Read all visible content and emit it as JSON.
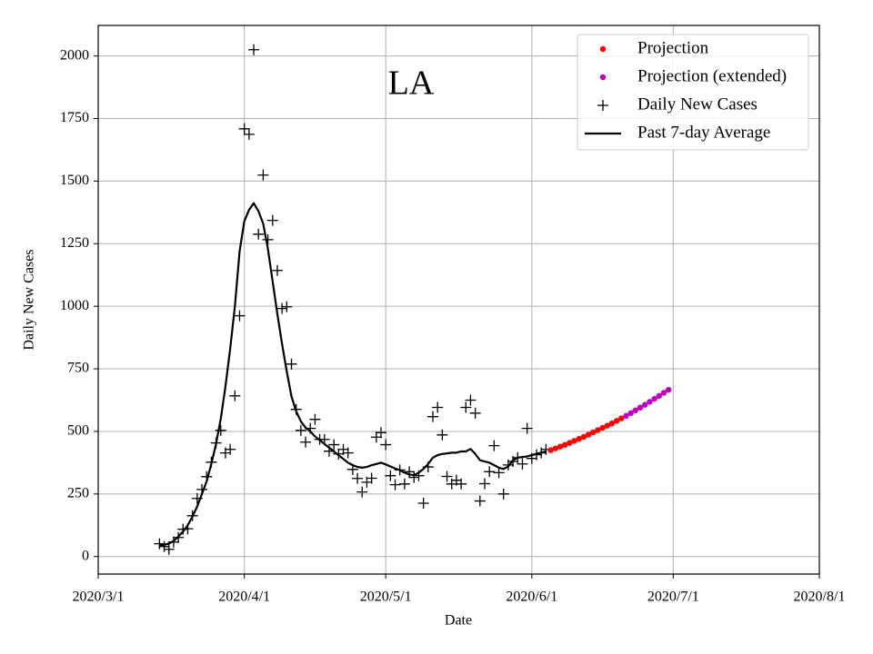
{
  "chart_data": {
    "type": "line",
    "title": "LA",
    "xlabel": "Date",
    "ylabel": "Daily New Cases",
    "xlim": [
      "2020/3/1",
      "2020/8/1"
    ],
    "xticks": [
      "2020/3/1",
      "2020/4/1",
      "2020/5/1",
      "2020/6/1",
      "2020/7/1",
      "2020/8/1"
    ],
    "ylim": [
      -70,
      2122
    ],
    "yticks": [
      0,
      250,
      500,
      750,
      1000,
      1250,
      1500,
      1750,
      2000
    ],
    "grid": true,
    "legend": "upper right",
    "series": [
      {
        "name": "Projection",
        "color": "#ff0000",
        "style": "dot",
        "x": [
          "2020/6/5",
          "2020/6/6",
          "2020/6/7",
          "2020/6/8",
          "2020/6/9",
          "2020/6/10",
          "2020/6/11",
          "2020/6/12",
          "2020/6/13",
          "2020/6/14",
          "2020/6/15",
          "2020/6/16",
          "2020/6/17",
          "2020/6/18",
          "2020/6/19",
          "2020/6/20"
        ],
        "values": [
          425,
          432,
          439,
          446,
          454,
          462,
          470,
          478,
          487,
          496,
          505,
          514,
          523,
          532,
          542,
          552
        ]
      },
      {
        "name": "Projection (extended)",
        "color": "#bf00bf",
        "style": "dot",
        "x": [
          "2020/6/21",
          "2020/6/22",
          "2020/6/23",
          "2020/6/24",
          "2020/6/25",
          "2020/6/26",
          "2020/6/27",
          "2020/6/28",
          "2020/6/29",
          "2020/6/30"
        ],
        "values": [
          562,
          573,
          584,
          595,
          606,
          618,
          630,
          642,
          654,
          666
        ]
      },
      {
        "name": "Daily New Cases",
        "color": "#000000",
        "style": "plus",
        "x": [
          "2020/3/14",
          "2020/3/15",
          "2020/3/16",
          "2020/3/17",
          "2020/3/18",
          "2020/3/19",
          "2020/3/20",
          "2020/3/21",
          "2020/3/22",
          "2020/3/23",
          "2020/3/24",
          "2020/3/25",
          "2020/3/26",
          "2020/3/27",
          "2020/3/28",
          "2020/3/29",
          "2020/3/30",
          "2020/3/31",
          "2020/4/1",
          "2020/4/2",
          "2020/4/3",
          "2020/4/4",
          "2020/4/5",
          "2020/4/6",
          "2020/4/7",
          "2020/4/8",
          "2020/4/9",
          "2020/4/10",
          "2020/4/11",
          "2020/4/12",
          "2020/4/13",
          "2020/4/14",
          "2020/4/15",
          "2020/4/16",
          "2020/4/17",
          "2020/4/18",
          "2020/4/19",
          "2020/4/20",
          "2020/4/21",
          "2020/4/22",
          "2020/4/23",
          "2020/4/24",
          "2020/4/25",
          "2020/4/26",
          "2020/4/27",
          "2020/4/28",
          "2020/4/29",
          "2020/4/30",
          "2020/5/1",
          "2020/5/2",
          "2020/5/3",
          "2020/5/4",
          "2020/5/5",
          "2020/5/6",
          "2020/5/7",
          "2020/5/8",
          "2020/5/9",
          "2020/5/10",
          "2020/5/11",
          "2020/5/12",
          "2020/5/13",
          "2020/5/14",
          "2020/5/15",
          "2020/5/16",
          "2020/5/17",
          "2020/5/18",
          "2020/5/19",
          "2020/5/20",
          "2020/5/21",
          "2020/5/22",
          "2020/5/23",
          "2020/5/24",
          "2020/5/25",
          "2020/5/26",
          "2020/5/27",
          "2020/5/28",
          "2020/5/29",
          "2020/5/30",
          "2020/5/31",
          "2020/6/1",
          "2020/6/2",
          "2020/6/3",
          "2020/6/4"
        ],
        "values": [
          51,
          40,
          29,
          58,
          76,
          109,
          111,
          163,
          232,
          268,
          319,
          377,
          454,
          504,
          414,
          428,
          642,
          962,
          1709,
          1687,
          2025,
          1288,
          1524,
          1266,
          1343,
          1143,
          991,
          998,
          769,
          588,
          504,
          457,
          512,
          548,
          468,
          468,
          421,
          447,
          410,
          428,
          414,
          348,
          312,
          258,
          297,
          313,
          477,
          495,
          447,
          323,
          287,
          346,
          290,
          339,
          316,
          323,
          213,
          358,
          559,
          596,
          486,
          320,
          290,
          305,
          290,
          596,
          625,
          573,
          222,
          291,
          339,
          443,
          335,
          250,
          366,
          380,
          395,
          370,
          512,
          392,
          407,
          414,
          428
        ]
      },
      {
        "name": "Past 7-day Average",
        "color": "#000000",
        "style": "line",
        "x": [
          "2020/3/14",
          "2020/3/15",
          "2020/3/16",
          "2020/3/17",
          "2020/3/18",
          "2020/3/19",
          "2020/3/20",
          "2020/3/21",
          "2020/3/22",
          "2020/3/23",
          "2020/3/24",
          "2020/3/25",
          "2020/3/26",
          "2020/3/27",
          "2020/3/28",
          "2020/3/29",
          "2020/3/30",
          "2020/3/31",
          "2020/4/1",
          "2020/4/2",
          "2020/4/3",
          "2020/4/4",
          "2020/4/5",
          "2020/4/6",
          "2020/4/7",
          "2020/4/8",
          "2020/4/9",
          "2020/4/10",
          "2020/4/11",
          "2020/4/12",
          "2020/4/13",
          "2020/4/14",
          "2020/4/15",
          "2020/4/16",
          "2020/4/17",
          "2020/4/18",
          "2020/4/19",
          "2020/4/20",
          "2020/4/21",
          "2020/4/22",
          "2020/4/23",
          "2020/4/24",
          "2020/4/25",
          "2020/4/26",
          "2020/4/27",
          "2020/4/28",
          "2020/4/29",
          "2020/4/30",
          "2020/5/1",
          "2020/5/2",
          "2020/5/3",
          "2020/5/4",
          "2020/5/5",
          "2020/5/6",
          "2020/5/7",
          "2020/5/8",
          "2020/5/9",
          "2020/5/10",
          "2020/5/11",
          "2020/5/12",
          "2020/5/13",
          "2020/5/14",
          "2020/5/15",
          "2020/5/16",
          "2020/5/17",
          "2020/5/18",
          "2020/5/19",
          "2020/5/20",
          "2020/5/21",
          "2020/5/22",
          "2020/5/23",
          "2020/5/24",
          "2020/5/25",
          "2020/5/26",
          "2020/5/27",
          "2020/5/28",
          "2020/5/29",
          "2020/5/30",
          "2020/5/31",
          "2020/6/1",
          "2020/6/2",
          "2020/6/3",
          "2020/6/4"
        ],
        "values": [
          45,
          47,
          52,
          62,
          80,
          100,
          125,
          160,
          200,
          250,
          300,
          370,
          450,
          550,
          680,
          830,
          1000,
          1220,
          1340,
          1385,
          1412,
          1380,
          1330,
          1230,
          1100,
          970,
          850,
          740,
          640,
          580,
          540,
          515,
          500,
          480,
          465,
          450,
          435,
          420,
          405,
          390,
          375,
          365,
          358,
          355,
          358,
          365,
          370,
          375,
          368,
          360,
          352,
          345,
          335,
          328,
          325,
          335,
          350,
          370,
          395,
          405,
          410,
          412,
          415,
          415,
          420,
          420,
          430,
          410,
          385,
          380,
          375,
          365,
          355,
          350,
          360,
          385,
          395,
          398,
          400,
          405,
          410,
          415,
          420
        ]
      }
    ]
  }
}
